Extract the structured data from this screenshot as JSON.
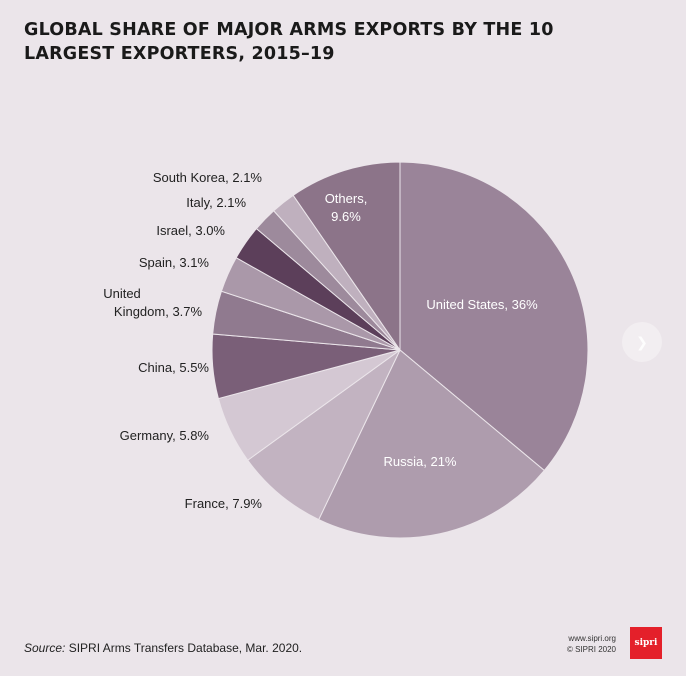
{
  "chart_data": {
    "type": "pie",
    "title": "GLOBAL SHARE OF MAJOR ARMS EXPORTS BY THE 10 LARGEST EXPORTERS, 2015–19",
    "slices": [
      {
        "label": "United States",
        "value_text": "36%",
        "value": 36,
        "color": "#9a8499",
        "label_color": "#ffffff"
      },
      {
        "label": "Russia",
        "value_text": "21%",
        "value": 21,
        "color": "#ae9cad",
        "label_color": "#ffffff"
      },
      {
        "label": "France",
        "value_text": "7.9%",
        "value": 7.9,
        "color": "#c2b3c1",
        "label_color": "#222222"
      },
      {
        "label": "Germany",
        "value_text": "5.8%",
        "value": 5.8,
        "color": "#d4c8d3",
        "label_color": "#222222"
      },
      {
        "label": "China",
        "value_text": "5.5%",
        "value": 5.5,
        "color": "#7a5f78",
        "label_color": "#222222"
      },
      {
        "label": "United Kingdom",
        "value_text": "3.7%",
        "value": 3.7,
        "color": "#907a8f",
        "label_color": "#222222"
      },
      {
        "label": "Spain",
        "value_text": "3.1%",
        "value": 3.1,
        "color": "#aa98a9",
        "label_color": "#222222"
      },
      {
        "label": "Israel",
        "value_text": "3.0%",
        "value": 3.0,
        "color": "#5c3f5a",
        "label_color": "#222222"
      },
      {
        "label": "Italy",
        "value_text": "2.1%",
        "value": 2.1,
        "color": "#9d8a9c",
        "label_color": "#222222"
      },
      {
        "label": "South Korea",
        "value_text": "2.1%",
        "value": 2.1,
        "color": "#bfb0be",
        "label_color": "#222222"
      },
      {
        "label": "Others",
        "value_text": "9.6%",
        "value": 9.6,
        "color": "#8c7489",
        "label_color": "#ffffff"
      }
    ],
    "legend": "none",
    "label_placement": "inside for large slices, outside-left for small slices"
  },
  "footer": {
    "source_prefix": "Source:",
    "source_text": " SIPRI Arms Transfers Database, Mar. 2020.",
    "website": "www.sipri.org",
    "copyright": "© SIPRI 2020",
    "logo_text": "sipri"
  },
  "colors": {
    "background": "#ebe5ea",
    "logo": "#e4202a",
    "slice_border": "#ebe5ea"
  },
  "nav_icon": "chevron-right-icon"
}
